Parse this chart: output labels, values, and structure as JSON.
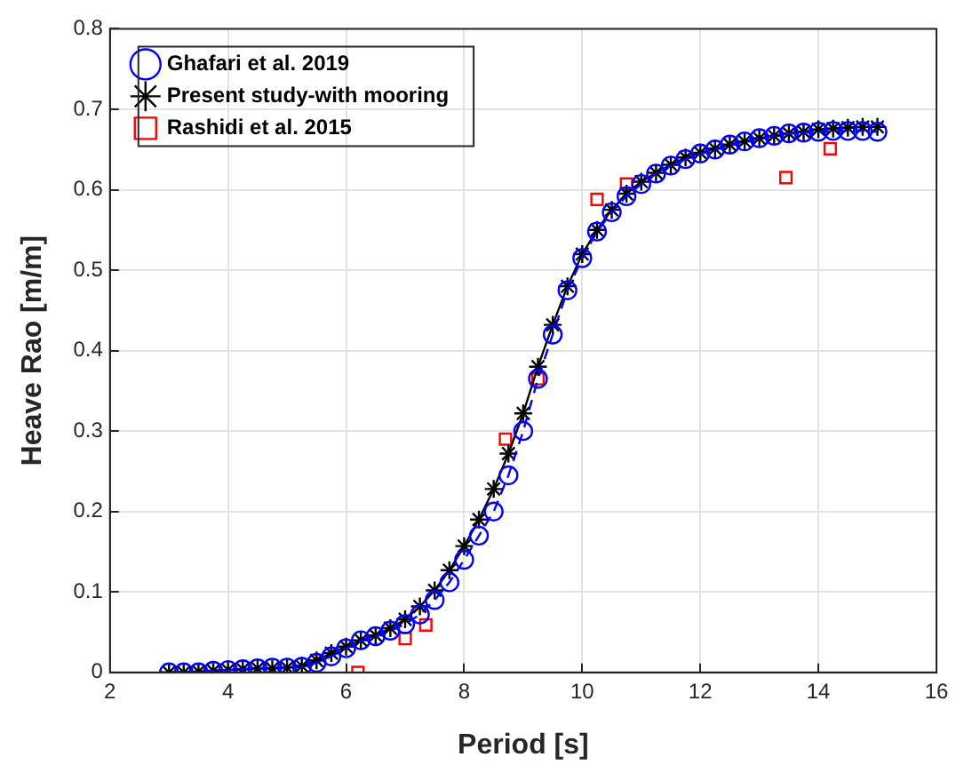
{
  "chart_data": {
    "type": "line",
    "xlabel": "Period [s]",
    "ylabel": "Heave Rao [m/m]",
    "xlim": [
      2,
      16
    ],
    "xticks": [
      2,
      4,
      6,
      8,
      10,
      12,
      14,
      16
    ],
    "ylim": [
      0,
      0.8
    ],
    "yticks": [
      0,
      0.1,
      0.2,
      0.3,
      0.4,
      0.5,
      0.6,
      0.7,
      0.8
    ],
    "grid": true,
    "legend": "top left",
    "series": [
      {
        "name": "Ghafari et al. 2019",
        "type": "line",
        "color": "#0000ff",
        "marker": "circle",
        "line_style": "dashed",
        "x": [
          3,
          3.25,
          3.5,
          3.75,
          4,
          4.25,
          4.5,
          4.75,
          5,
          5.25,
          5.5,
          5.75,
          6,
          6.25,
          6.5,
          6.75,
          7,
          7.25,
          7.5,
          7.75,
          8,
          8.25,
          8.5,
          8.75,
          9,
          9.25,
          9.5,
          9.75,
          10,
          10.25,
          10.5,
          10.75,
          11,
          11.25,
          11.5,
          11.75,
          12,
          12.25,
          12.5,
          12.75,
          13,
          13.25,
          13.5,
          13.75,
          14,
          14.25,
          14.5,
          14.75,
          15
        ],
        "values": [
          0,
          0,
          0,
          0.002,
          0.003,
          0.004,
          0.005,
          0.006,
          0.006,
          0.007,
          0.012,
          0.02,
          0.03,
          0.04,
          0.045,
          0.052,
          0.06,
          0.072,
          0.09,
          0.112,
          0.14,
          0.17,
          0.2,
          0.245,
          0.3,
          0.365,
          0.42,
          0.475,
          0.515,
          0.548,
          0.572,
          0.592,
          0.607,
          0.62,
          0.63,
          0.638,
          0.645,
          0.65,
          0.656,
          0.66,
          0.664,
          0.667,
          0.67,
          0.671,
          0.672,
          0.673,
          0.673,
          0.673,
          0.672
        ]
      },
      {
        "name": "Present study-with mooring",
        "type": "line",
        "color": "#000000",
        "marker": "cross",
        "line_style": "solid",
        "x": [
          3,
          3.25,
          3.5,
          3.75,
          4,
          4.25,
          4.5,
          4.75,
          5,
          5.25,
          5.5,
          5.75,
          6,
          6.25,
          6.5,
          6.75,
          7,
          7.25,
          7.5,
          7.75,
          8,
          8.25,
          8.5,
          8.75,
          9,
          9.25,
          9.5,
          9.75,
          10,
          10.25,
          10.5,
          10.75,
          11,
          11.25,
          11.5,
          11.75,
          12,
          12.25,
          12.5,
          12.75,
          13,
          13.25,
          13.5,
          13.75,
          14,
          14.25,
          14.5,
          14.75,
          15
        ],
        "values": [
          0,
          0,
          0.001,
          0.002,
          0.003,
          0.004,
          0.005,
          0.005,
          0.006,
          0.008,
          0.015,
          0.024,
          0.032,
          0.04,
          0.046,
          0.055,
          0.066,
          0.082,
          0.102,
          0.127,
          0.157,
          0.19,
          0.228,
          0.272,
          0.322,
          0.38,
          0.432,
          0.48,
          0.52,
          0.55,
          0.575,
          0.595,
          0.61,
          0.621,
          0.631,
          0.64,
          0.646,
          0.651,
          0.656,
          0.66,
          0.664,
          0.667,
          0.67,
          0.672,
          0.675,
          0.676,
          0.677,
          0.678,
          0.678
        ]
      },
      {
        "name": "Rashidi et al. 2015",
        "type": "scatter",
        "color": "#ff0000",
        "marker": "square",
        "x": [
          6.2,
          7.0,
          7.35,
          8.7,
          9.25,
          10.25,
          10.75,
          13.45,
          14.2
        ],
        "values": [
          0.0,
          0.042,
          0.059,
          0.29,
          0.365,
          0.588,
          0.607,
          0.615,
          0.651
        ]
      }
    ]
  }
}
